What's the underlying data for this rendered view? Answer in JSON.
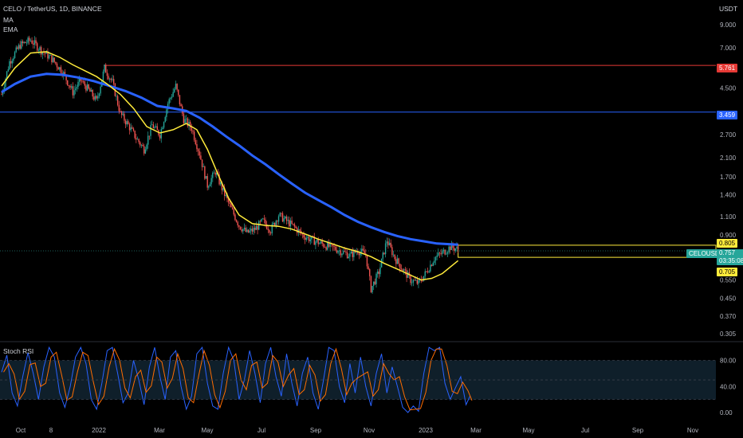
{
  "header": {
    "symbol_line": "CELO / TetherUS, 1D, BINANCE",
    "ma_label": "MA",
    "ema_label": "EMA",
    "currency": "USDT"
  },
  "colors": {
    "background": "#000000",
    "candle_up": "#26a69a",
    "candle_down": "#ef5350",
    "ma_line": "#2962ff",
    "ema_line": "#ffeb3b",
    "resistance_line": "#e53935",
    "level_line": "#2962ff",
    "stoch_k": "#2962ff",
    "stoch_d": "#ff6d00",
    "rsi_band": "#0f1f2a"
  },
  "tags": {
    "resistance": "5.761",
    "level": "3.459",
    "upper": "0.805",
    "symbol": "CELOUSDT",
    "price": "0.757",
    "countdown": "03:35:08",
    "lower": "0.705"
  },
  "rsi": {
    "title": "Stoch RSI",
    "ticks": [
      "80.00",
      "40.00",
      "0.00"
    ]
  },
  "chart_data": {
    "type": "candlestick",
    "title": "CELO / TetherUS, 1D, BINANCE",
    "y_scale": "log",
    "y_ticks": [
      "9.000",
      "7.000",
      "5.761",
      "4.500",
      "3.459",
      "2.700",
      "2.100",
      "1.700",
      "1.400",
      "1.100",
      "0.900",
      "0.805",
      "0.757",
      "0.705",
      "0.550",
      "0.450",
      "0.370",
      "0.305"
    ],
    "x_ticks": [
      "Oct",
      "8",
      "2022",
      "Mar",
      "May",
      "Jul",
      "Sep",
      "Nov",
      "2023",
      "Mar",
      "May",
      "Jul",
      "Sep",
      "Nov"
    ],
    "price_path": [
      [
        0,
        4.2
      ],
      [
        6,
        6.0
      ],
      [
        14,
        7.2
      ],
      [
        22,
        7.6
      ],
      [
        30,
        6.8
      ],
      [
        38,
        6.2
      ],
      [
        46,
        5.4
      ],
      [
        54,
        4.3
      ],
      [
        60,
        4.9
      ],
      [
        66,
        4.4
      ],
      [
        72,
        3.9
      ],
      [
        78,
        5.6
      ],
      [
        84,
        4.8
      ],
      [
        90,
        3.4
      ],
      [
        96,
        3.0
      ],
      [
        102,
        2.6
      ],
      [
        108,
        2.3
      ],
      [
        114,
        3.0
      ],
      [
        120,
        2.7
      ],
      [
        126,
        3.8
      ],
      [
        132,
        4.6
      ],
      [
        138,
        3.2
      ],
      [
        144,
        2.9
      ],
      [
        150,
        2.2
      ],
      [
        156,
        1.55
      ],
      [
        162,
        1.8
      ],
      [
        168,
        1.45
      ],
      [
        174,
        1.2
      ],
      [
        180,
        1.0
      ],
      [
        186,
        0.92
      ],
      [
        192,
        0.96
      ],
      [
        198,
        1.05
      ],
      [
        204,
        0.95
      ],
      [
        210,
        1.12
      ],
      [
        216,
        1.05
      ],
      [
        222,
        0.98
      ],
      [
        228,
        0.9
      ],
      [
        234,
        0.86
      ],
      [
        240,
        0.83
      ],
      [
        246,
        0.8
      ],
      [
        252,
        0.78
      ],
      [
        258,
        0.75
      ],
      [
        264,
        0.72
      ],
      [
        270,
        0.76
      ],
      [
        276,
        0.73
      ],
      [
        280,
        0.5
      ],
      [
        286,
        0.6
      ],
      [
        292,
        0.85
      ],
      [
        298,
        0.7
      ],
      [
        304,
        0.62
      ],
      [
        310,
        0.55
      ],
      [
        316,
        0.53
      ],
      [
        322,
        0.6
      ],
      [
        328,
        0.7
      ],
      [
        334,
        0.74
      ],
      [
        340,
        0.79
      ],
      [
        346,
        0.77
      ]
    ],
    "ema_path": [
      [
        0,
        4.6
      ],
      [
        10,
        5.6
      ],
      [
        22,
        6.6
      ],
      [
        34,
        6.7
      ],
      [
        44,
        6.3
      ],
      [
        54,
        5.8
      ],
      [
        64,
        5.4
      ],
      [
        72,
        5.1
      ],
      [
        80,
        4.7
      ],
      [
        90,
        4.2
      ],
      [
        100,
        3.6
      ],
      [
        110,
        2.95
      ],
      [
        120,
        2.75
      ],
      [
        130,
        2.85
      ],
      [
        140,
        3.05
      ],
      [
        148,
        2.85
      ],
      [
        156,
        2.3
      ],
      [
        164,
        1.75
      ],
      [
        172,
        1.35
      ],
      [
        180,
        1.12
      ],
      [
        190,
        1.02
      ],
      [
        200,
        1.0
      ],
      [
        210,
        0.99
      ],
      [
        220,
        0.96
      ],
      [
        230,
        0.91
      ],
      [
        240,
        0.86
      ],
      [
        250,
        0.82
      ],
      [
        260,
        0.78
      ],
      [
        270,
        0.75
      ],
      [
        280,
        0.71
      ],
      [
        290,
        0.66
      ],
      [
        300,
        0.62
      ],
      [
        310,
        0.58
      ],
      [
        318,
        0.55
      ],
      [
        326,
        0.56
      ],
      [
        334,
        0.59
      ],
      [
        346,
        0.68
      ]
    ],
    "ma_path": [
      [
        0,
        4.3
      ],
      [
        10,
        4.7
      ],
      [
        22,
        5.1
      ],
      [
        34,
        5.25
      ],
      [
        46,
        5.2
      ],
      [
        58,
        5.05
      ],
      [
        70,
        4.85
      ],
      [
        82,
        4.6
      ],
      [
        94,
        4.35
      ],
      [
        106,
        4.05
      ],
      [
        118,
        3.7
      ],
      [
        130,
        3.6
      ],
      [
        140,
        3.5
      ],
      [
        150,
        3.25
      ],
      [
        160,
        2.95
      ],
      [
        170,
        2.65
      ],
      [
        180,
        2.4
      ],
      [
        190,
        2.15
      ],
      [
        200,
        1.95
      ],
      [
        210,
        1.75
      ],
      [
        220,
        1.58
      ],
      [
        230,
        1.43
      ],
      [
        240,
        1.32
      ],
      [
        250,
        1.22
      ],
      [
        260,
        1.12
      ],
      [
        270,
        1.04
      ],
      [
        280,
        0.98
      ],
      [
        290,
        0.93
      ],
      [
        300,
        0.89
      ],
      [
        310,
        0.86
      ],
      [
        320,
        0.84
      ],
      [
        330,
        0.82
      ],
      [
        346,
        0.81
      ]
    ],
    "stoch_rsi_k": [
      [
        0,
        62
      ],
      [
        4,
        88
      ],
      [
        8,
        30
      ],
      [
        12,
        10
      ],
      [
        16,
        55
      ],
      [
        20,
        92
      ],
      [
        24,
        60
      ],
      [
        28,
        20
      ],
      [
        32,
        70
      ],
      [
        36,
        100
      ],
      [
        40,
        85
      ],
      [
        44,
        30
      ],
      [
        48,
        8
      ],
      [
        52,
        40
      ],
      [
        56,
        85
      ],
      [
        60,
        100
      ],
      [
        64,
        75
      ],
      [
        68,
        20
      ],
      [
        72,
        5
      ],
      [
        76,
        45
      ],
      [
        80,
        95
      ],
      [
        84,
        100
      ],
      [
        88,
        60
      ],
      [
        92,
        15
      ],
      [
        96,
        30
      ],
      [
        100,
        80
      ],
      [
        104,
        50
      ],
      [
        108,
        12
      ],
      [
        112,
        70
      ],
      [
        116,
        100
      ],
      [
        120,
        55
      ],
      [
        124,
        20
      ],
      [
        128,
        85
      ],
      [
        132,
        95
      ],
      [
        136,
        40
      ],
      [
        140,
        5
      ],
      [
        144,
        25
      ],
      [
        148,
        90
      ],
      [
        152,
        100
      ],
      [
        156,
        45
      ],
      [
        160,
        10
      ],
      [
        164,
        5
      ],
      [
        168,
        60
      ],
      [
        172,
        100
      ],
      [
        176,
        80
      ],
      [
        180,
        20
      ],
      [
        184,
        50
      ],
      [
        188,
        95
      ],
      [
        192,
        60
      ],
      [
        196,
        15
      ],
      [
        200,
        75
      ],
      [
        204,
        100
      ],
      [
        208,
        55
      ],
      [
        212,
        25
      ],
      [
        216,
        90
      ],
      [
        220,
        45
      ],
      [
        224,
        10
      ],
      [
        228,
        60
      ],
      [
        232,
        85
      ],
      [
        236,
        30
      ],
      [
        240,
        5
      ],
      [
        244,
        50
      ],
      [
        248,
        100
      ],
      [
        252,
        95
      ],
      [
        256,
        40
      ],
      [
        260,
        15
      ],
      [
        264,
        75
      ],
      [
        268,
        30
      ],
      [
        272,
        85
      ],
      [
        276,
        40
      ],
      [
        280,
        10
      ],
      [
        284,
        60
      ],
      [
        288,
        90
      ],
      [
        292,
        30
      ],
      [
        296,
        70
      ],
      [
        300,
        40
      ],
      [
        304,
        8
      ],
      [
        308,
        0
      ],
      [
        312,
        10
      ],
      [
        316,
        2
      ],
      [
        320,
        60
      ],
      [
        324,
        100
      ],
      [
        328,
        95
      ],
      [
        332,
        100
      ],
      [
        336,
        45
      ],
      [
        340,
        20
      ],
      [
        344,
        38
      ],
      [
        348,
        55
      ],
      [
        352,
        12
      ],
      [
        355,
        25
      ]
    ]
  }
}
